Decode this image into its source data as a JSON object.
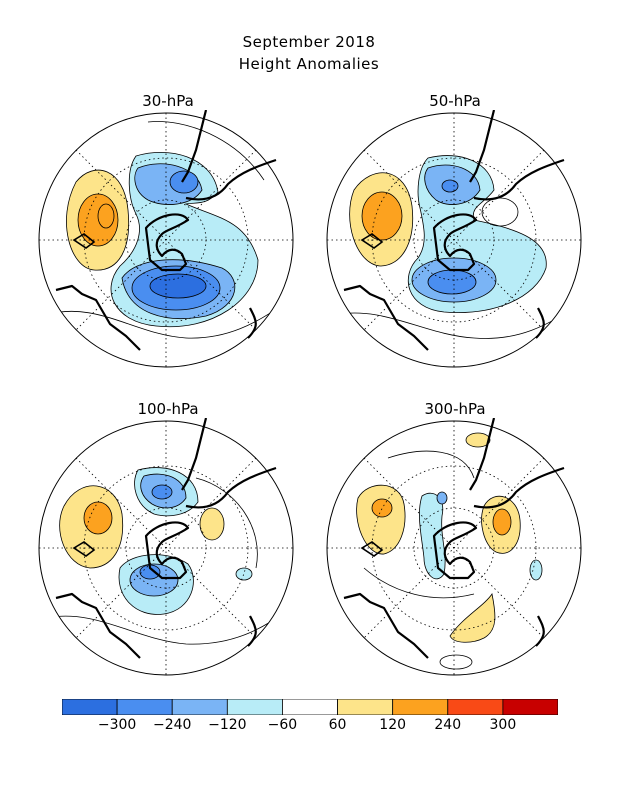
{
  "title_line1": "September 2018",
  "title_line2": "Height Anomalies",
  "panels": [
    {
      "label": "30-hPa"
    },
    {
      "label": "50-hPa"
    },
    {
      "label": "100-hPa"
    },
    {
      "label": "300-hPa"
    }
  ],
  "colorbar": {
    "colors": [
      "#2c6fe0",
      "#4a8ef0",
      "#7ab4f5",
      "#b8ecf7",
      "#ffffff",
      "#fde48a",
      "#fca21f",
      "#f94a16",
      "#c80000"
    ],
    "tick_labels": [
      "−300",
      "−240",
      "−120",
      "−60",
      "60",
      "120",
      "240",
      "300"
    ]
  },
  "contour_colors": {
    "neg_strong": "#2c6fe0",
    "neg_mid": "#4a8ef0",
    "neg_light": "#7ab4f5",
    "neg_faint": "#b8ecf7",
    "pos_faint": "#fde48a",
    "pos_mid": "#fca21f"
  }
}
